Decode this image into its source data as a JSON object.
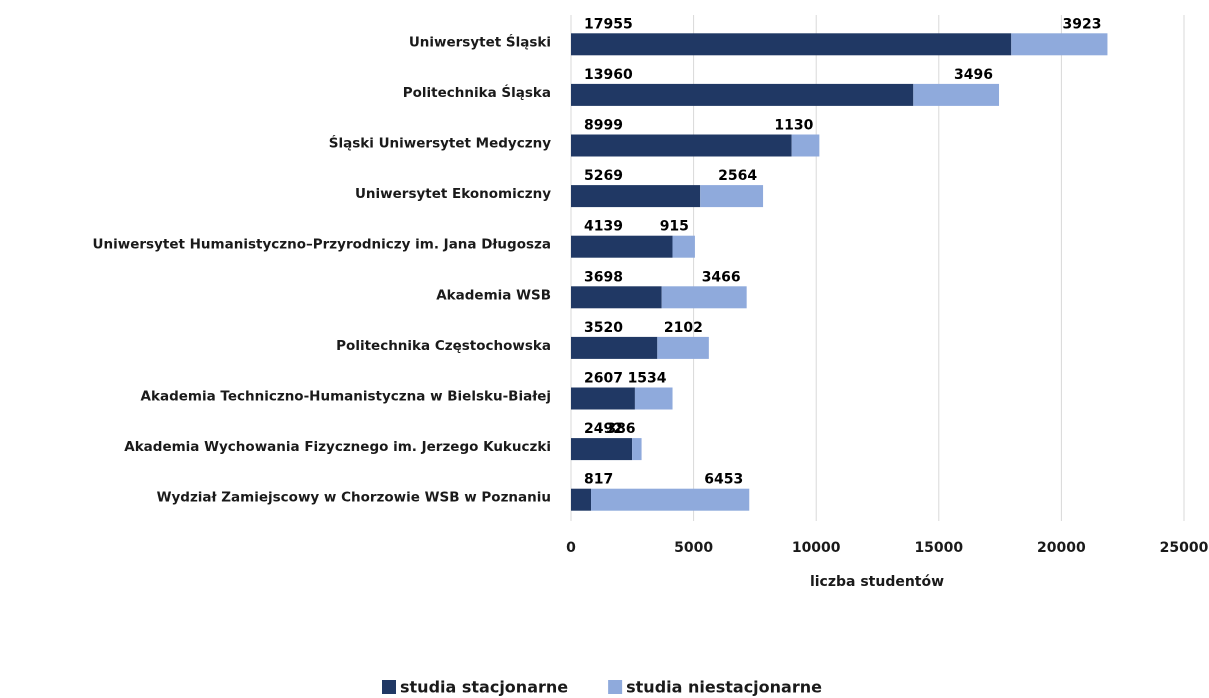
{
  "chart_data": {
    "type": "bar",
    "orientation": "horizontal",
    "stacked": true,
    "categories": [
      "Uniwersytet Śląski",
      "Politechnika Śląska",
      "Śląski Uniwersytet Medyczny",
      "Uniwersytet Ekonomiczny",
      "Uniwersytet Humanistyczno–Przyrodniczy  im. Jana Długosza",
      "Akademia WSB",
      "Politechnika Częstochowska",
      "Akademia Techniczno-Humanistyczna w Bielsku-Białej",
      "Akademia Wychowania Fizycznego im. Jerzego Kukuczki",
      "Wydział Zamiejscowy w Chorzowie WSB w Poznaniu"
    ],
    "series": [
      {
        "name": "studia stacjonarne",
        "color": "#203864",
        "values": [
          17955,
          13960,
          8999,
          5269,
          4139,
          3698,
          3520,
          2607,
          2492,
          817
        ]
      },
      {
        "name": "studia niestacjonarne",
        "color": "#8faadc",
        "values": [
          3923,
          3496,
          1130,
          2564,
          915,
          3466,
          2102,
          1534,
          386,
          6453
        ]
      }
    ],
    "xlabel": "liczba studentów",
    "xlim": [
      0,
      25000
    ],
    "xticks": [
      0,
      5000,
      10000,
      15000,
      20000,
      25000
    ],
    "grid": true,
    "legend": "bottom"
  }
}
